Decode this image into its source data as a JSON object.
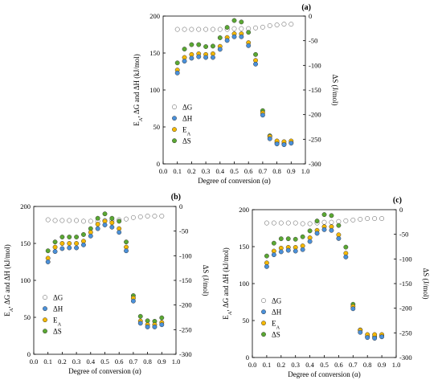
{
  "chart_data": [
    {
      "type": "scatter",
      "panel_label": "(a)",
      "xlabel": "Degree of conversion (α)",
      "ylabel_left": "E_A, ΔG and ΔH (kJ/mol)",
      "ylabel_right": "ΔS (J/mol)",
      "xlim": [
        0.0,
        1.0
      ],
      "ylim_left": [
        0,
        200
      ],
      "ylim_right": [
        -300,
        0
      ],
      "xticks": [
        "0.0",
        "0.1",
        "0.2",
        "0.3",
        "0.4",
        "0.5",
        "0.6",
        "0.7",
        "0.8",
        "0.9",
        "1.0"
      ],
      "yticks_left": [
        "0",
        "50",
        "100",
        "150",
        "200"
      ],
      "yticks_right": [
        "-300",
        "-250",
        "-200",
        "-150",
        "-100",
        "-50",
        "0"
      ],
      "legend_position": "left",
      "grid": false,
      "x": [
        0.1,
        0.15,
        0.2,
        0.25,
        0.3,
        0.35,
        0.4,
        0.45,
        0.5,
        0.55,
        0.6,
        0.65,
        0.7,
        0.75,
        0.8,
        0.85,
        0.9
      ],
      "series": [
        {
          "name": "ΔG",
          "axis": "left",
          "marker": "open",
          "color": "#ffffff",
          "values": [
            182,
            182,
            182,
            182,
            182,
            182,
            182,
            182,
            183,
            183,
            183,
            184,
            185,
            187,
            188,
            189,
            189
          ]
        },
        {
          "name": "ΔH",
          "axis": "left",
          "marker": "filled",
          "color": "#4a90d9",
          "values": [
            123,
            139,
            143,
            145,
            144,
            144,
            155,
            167,
            172,
            172,
            160,
            135,
            66,
            34,
            27,
            26,
            28
          ]
        },
        {
          "name": "E_A",
          "axis": "left",
          "marker": "filled",
          "color": "#f5b800",
          "values": [
            127,
            144,
            148,
            149,
            148,
            149,
            159,
            171,
            176,
            176,
            164,
            140,
            69,
            37,
            31,
            30,
            31
          ]
        },
        {
          "name": "ΔS",
          "axis": "right",
          "marker": "filled",
          "color": "#5aa832",
          "values": [
            -95,
            -67,
            -58,
            -58,
            -62,
            -61,
            -44,
            -23,
            -9,
            -12,
            -33,
            -78,
            -192,
            -243,
            -257,
            -259,
            -257
          ]
        }
      ]
    },
    {
      "type": "scatter",
      "panel_label": "(b)",
      "xlabel": "Degree of conversion (α)",
      "ylabel_left": "E_A, ΔG and ΔH (kJ/mol)",
      "ylabel_right": "ΔS (J/mol)",
      "xlim": [
        0.0,
        1.0
      ],
      "ylim_left": [
        0,
        200
      ],
      "ylim_right": [
        -300,
        0
      ],
      "xticks": [
        "0.0",
        "0.1",
        "0.2",
        "0.3",
        "0.4",
        "0.5",
        "0.6",
        "0.7",
        "0.8",
        "0.9",
        "1.0"
      ],
      "yticks_left": [
        "0",
        "50",
        "100",
        "150",
        "200"
      ],
      "yticks_right": [
        "-300",
        "-250",
        "-200",
        "-150",
        "-100",
        "-50",
        "0"
      ],
      "legend_position": "left",
      "grid": false,
      "x": [
        0.1,
        0.15,
        0.2,
        0.25,
        0.3,
        0.35,
        0.4,
        0.45,
        0.5,
        0.55,
        0.6,
        0.65,
        0.7,
        0.75,
        0.8,
        0.85,
        0.9
      ],
      "series": [
        {
          "name": "ΔG",
          "axis": "left",
          "marker": "open",
          "color": "#ffffff",
          "values": [
            182,
            181,
            181,
            181,
            181,
            180,
            180,
            180,
            181,
            181,
            182,
            183,
            185,
            186,
            187,
            187,
            187
          ]
        },
        {
          "name": "ΔH",
          "axis": "left",
          "marker": "filled",
          "color": "#4a90d9",
          "values": [
            125,
            139,
            143,
            144,
            144,
            148,
            160,
            170,
            175,
            172,
            165,
            140,
            72,
            42,
            37,
            37,
            40
          ]
        },
        {
          "name": "E_A",
          "axis": "left",
          "marker": "filled",
          "color": "#f5b800",
          "values": [
            130,
            145,
            150,
            150,
            150,
            153,
            165,
            176,
            180,
            178,
            170,
            145,
            76,
            45,
            40,
            40,
            43
          ]
        },
        {
          "name": "ΔS",
          "axis": "right",
          "marker": "filled",
          "color": "#5aa832",
          "values": [
            -90,
            -72,
            -62,
            -62,
            -62,
            -57,
            -45,
            -24,
            -15,
            -24,
            -30,
            -72,
            -181,
            -223,
            -232,
            -233,
            -226
          ]
        }
      ]
    },
    {
      "type": "scatter",
      "panel_label": "(c)",
      "xlabel": "Degree of conversion (α)",
      "ylabel_left": "E_A, ΔG and ΔH (kJ/mol)",
      "ylabel_right": "ΔS (J/mol)",
      "xlim": [
        0.0,
        1.0
      ],
      "ylim_left": [
        0,
        200
      ],
      "ylim_right": [
        -300,
        0
      ],
      "xticks": [
        "0.0",
        "0.1",
        "0.2",
        "0.3",
        "0.4",
        "0.5",
        "0.6",
        "0.7",
        "0.8",
        "0.9",
        "1.0"
      ],
      "yticks_left": [
        "0",
        "50",
        "100",
        "150",
        "200"
      ],
      "yticks_right": [
        "-300",
        "-250",
        "-200",
        "-150",
        "-100",
        "-50",
        "0"
      ],
      "legend_position": "left",
      "grid": false,
      "x": [
        0.1,
        0.15,
        0.2,
        0.25,
        0.3,
        0.35,
        0.4,
        0.45,
        0.5,
        0.55,
        0.6,
        0.65,
        0.7,
        0.75,
        0.8,
        0.85,
        0.9
      ],
      "series": [
        {
          "name": "ΔG",
          "axis": "left",
          "marker": "open",
          "color": "#ffffff",
          "values": [
            182,
            182,
            182,
            182,
            182,
            181,
            181,
            182,
            183,
            183,
            184,
            185,
            186,
            187,
            188,
            188,
            188
          ]
        },
        {
          "name": "ΔH",
          "axis": "left",
          "marker": "filled",
          "color": "#4a90d9",
          "values": [
            123,
            139,
            143,
            145,
            144,
            146,
            157,
            168,
            173,
            172,
            161,
            136,
            66,
            34,
            27,
            26,
            28
          ]
        },
        {
          "name": "E_A",
          "axis": "left",
          "marker": "filled",
          "color": "#f5b800",
          "values": [
            128,
            144,
            148,
            149,
            149,
            151,
            162,
            172,
            177,
            177,
            166,
            141,
            69,
            37,
            31,
            31,
            31
          ]
        },
        {
          "name": "ΔS",
          "axis": "right",
          "marker": "filled",
          "color": "#5aa832",
          "values": [
            -94,
            -68,
            -59,
            -59,
            -60,
            -55,
            -43,
            -23,
            -10,
            -12,
            -32,
            -76,
            -192,
            -244,
            -258,
            -258,
            -256
          ]
        }
      ]
    }
  ]
}
